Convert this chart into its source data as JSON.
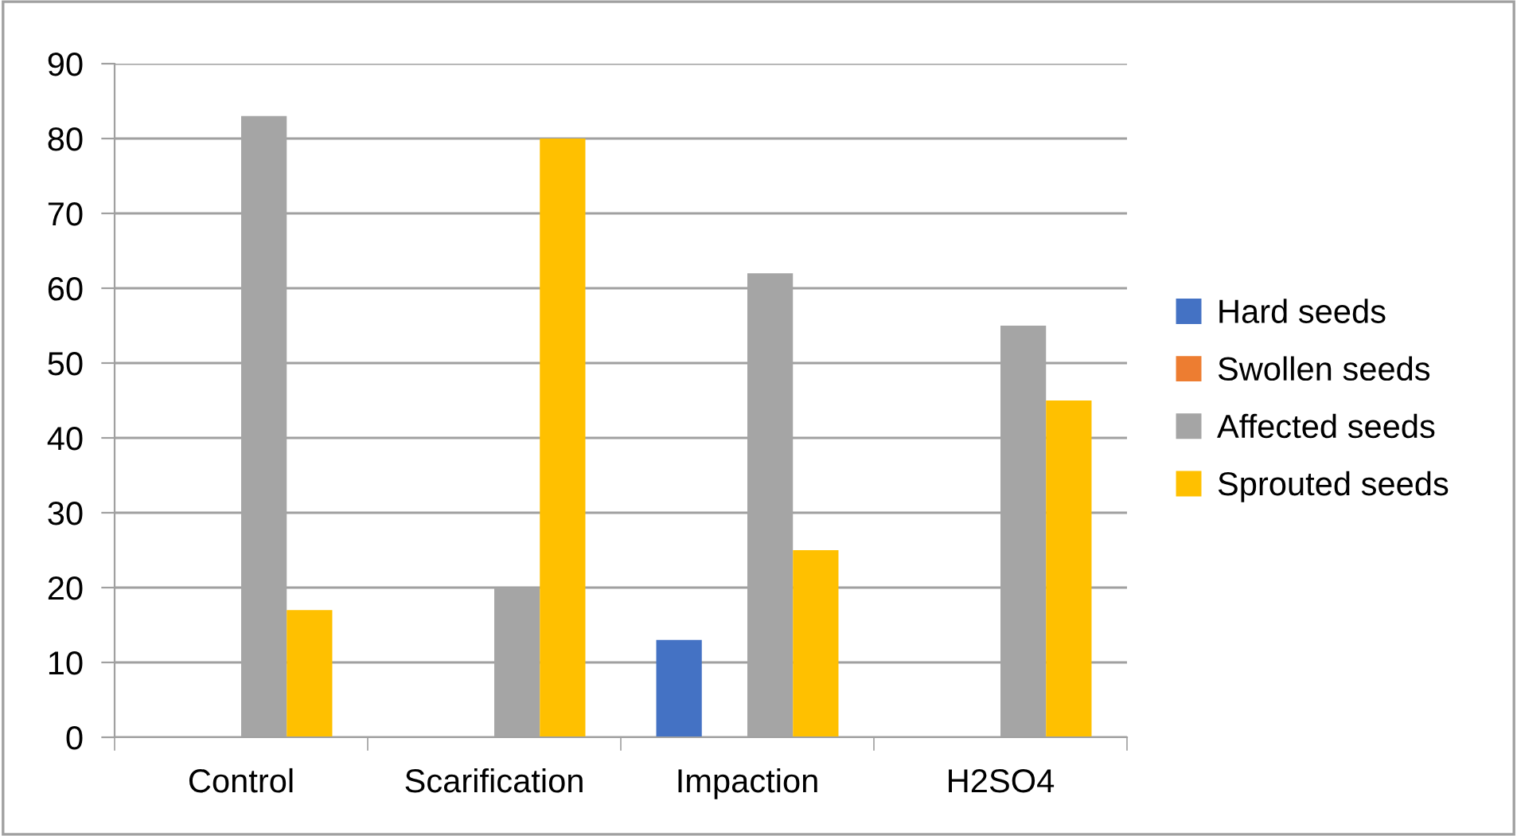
{
  "chart_data": {
    "type": "bar",
    "categories": [
      "Control",
      "Scarification",
      "Impaction",
      "H2SO4"
    ],
    "series": [
      {
        "name": "Hard seeds",
        "color": "#4472c4",
        "values": [
          0,
          0,
          13,
          0
        ]
      },
      {
        "name": "Swollen seeds",
        "color": "#ed7d31",
        "values": [
          0,
          0,
          0,
          0
        ]
      },
      {
        "name": "Affected seeds",
        "color": "#a5a5a5",
        "values": [
          83,
          20,
          62,
          55
        ]
      },
      {
        "name": "Sprouted seeds",
        "color": "#ffc000",
        "values": [
          17,
          80,
          25,
          45
        ]
      }
    ],
    "ylim": [
      0,
      90
    ],
    "yticks": [
      0,
      10,
      20,
      30,
      40,
      50,
      60,
      70,
      80,
      90
    ],
    "grid": "y",
    "legend": "right"
  }
}
